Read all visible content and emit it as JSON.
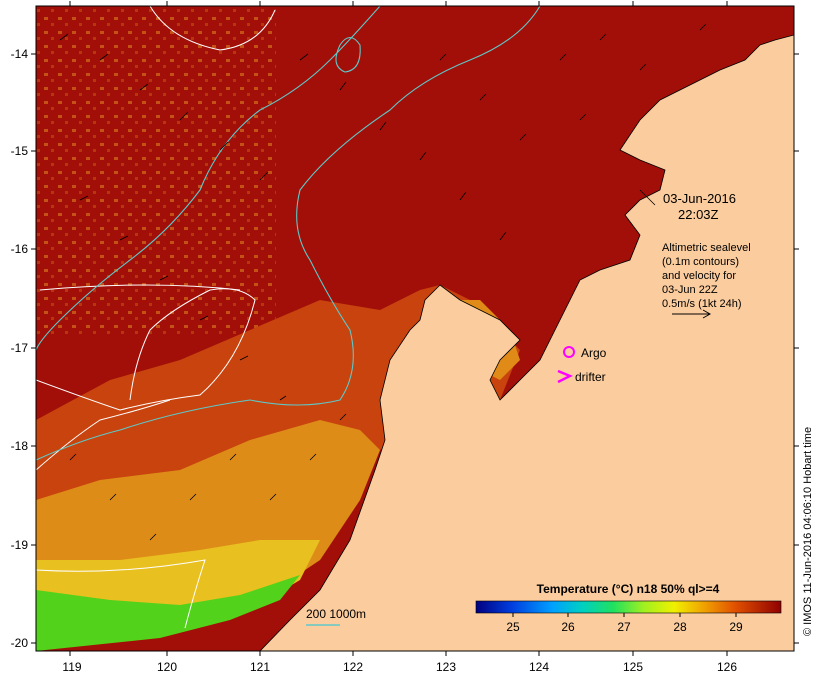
{
  "map": {
    "lon_ticks": [
      "119",
      "120",
      "121",
      "122",
      "123",
      "124",
      "125",
      "126"
    ],
    "lat_ticks": [
      "-14",
      "-15",
      "-16",
      "-17",
      "-18",
      "-19",
      "-20"
    ],
    "date_line": "03-Jun-2016",
    "time_line": "22:03Z",
    "altimetry_lines": [
      "Altimetric sealevel",
      "(0.1m contours)",
      "and velocity for",
      "03-Jun 22Z",
      "0.5m/s (1kt 24h)"
    ],
    "argo_label": "Argo",
    "drifter_label": "drifter",
    "depth_label": "200  1000m",
    "colorbar_title": "Temperature (°C) n18 50% ql>=4",
    "colorbar_ticks": [
      "25",
      "26",
      "27",
      "28",
      "29"
    ],
    "credit": "© IMOS 11-Jun-2016 04:06:10 Hobart time",
    "colors": {
      "land": "#fbcc9e",
      "sst_warm": "#a00c08",
      "sst_mid": "#cf4a10",
      "sst_cool": "#e8a01a",
      "sst_cold": "#52d21a",
      "argo": "#ff00ff",
      "depth_contour": "#5fc8c8"
    }
  }
}
